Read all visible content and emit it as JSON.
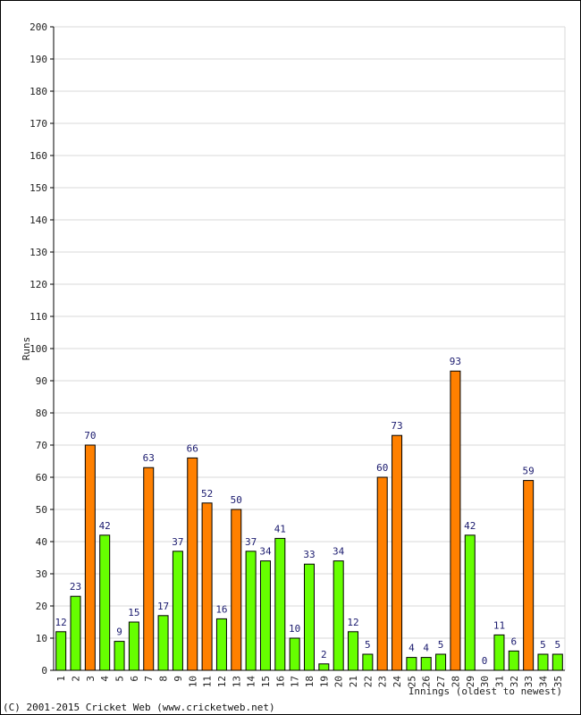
{
  "chart_data": {
    "type": "bar",
    "ylabel": "Runs",
    "xlabel": "Innings (oldest to newest)",
    "ylim": [
      0,
      200
    ],
    "ytick_step": 10,
    "grid": true,
    "categories": [
      "1",
      "2",
      "3",
      "4",
      "5",
      "6",
      "7",
      "8",
      "9",
      "10",
      "11",
      "12",
      "13",
      "14",
      "15",
      "16",
      "17",
      "18",
      "19",
      "20",
      "21",
      "22",
      "23",
      "24",
      "25",
      "26",
      "27",
      "28",
      "29",
      "30",
      "31",
      "32",
      "33",
      "34",
      "35"
    ],
    "values": [
      12,
      23,
      70,
      42,
      9,
      15,
      63,
      17,
      37,
      66,
      52,
      16,
      50,
      37,
      34,
      41,
      10,
      33,
      2,
      34,
      12,
      5,
      60,
      73,
      4,
      4,
      5,
      93,
      42,
      0,
      11,
      6,
      59,
      5,
      5
    ],
    "bar_status": [
      "out",
      "out",
      "notout",
      "out",
      "out",
      "out",
      "notout",
      "out",
      "out",
      "notout",
      "notout",
      "out",
      "notout",
      "out",
      "out",
      "out",
      "out",
      "out",
      "out",
      "out",
      "out",
      "out",
      "notout",
      "notout",
      "out",
      "out",
      "out",
      "notout",
      "out",
      "out",
      "out",
      "out",
      "notout",
      "out",
      "out"
    ],
    "colors": {
      "out": "#66ff00",
      "notout": "#ff8000",
      "outline": "#000000",
      "grid": "#d8d8d8",
      "label": "#1a1a6e"
    }
  },
  "footer": {
    "copyright": "(C) 2001-2015 Cricket Web (www.cricketweb.net)"
  }
}
